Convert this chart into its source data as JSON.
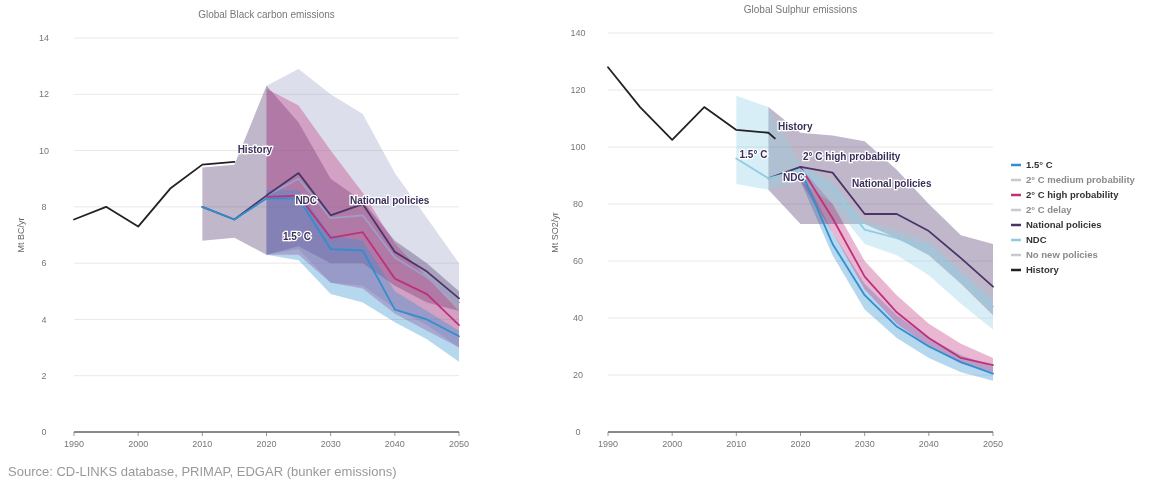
{
  "chart_data": [
    {
      "type": "line",
      "title": "Global Black carbon emissions",
      "ylabel": "Mt BC/yr",
      "xlim": [
        1990,
        2050
      ],
      "xticks": [
        1990,
        2000,
        2010,
        2020,
        2030,
        2040,
        2050
      ],
      "ylim": [
        0,
        14
      ],
      "yticks": [
        0,
        2,
        4,
        6,
        8,
        10,
        12,
        14
      ],
      "grid": "y",
      "legend": false,
      "series": [
        {
          "color": "#9aa0c8",
          "x": [
            2020,
            2025,
            2030,
            2035,
            2040,
            2045,
            2050
          ],
          "values": [
            8.4,
            9.0,
            7.6,
            7.7,
            6.2,
            5.5,
            4.6
          ],
          "lower": [
            6.3,
            6.5,
            5.3,
            5.2,
            4.4,
            3.8,
            3.0
          ],
          "upper": [
            12.3,
            12.9,
            12.0,
            11.3,
            9.2,
            7.6,
            6.0
          ]
        },
        {
          "color": "#4a3468",
          "x": [
            2010,
            2015,
            2020,
            2025,
            2030,
            2035,
            2040,
            2045,
            2050
          ],
          "values": [
            8.0,
            7.55,
            8.4,
            9.2,
            7.7,
            8.1,
            6.4,
            5.7,
            4.75
          ],
          "lower": [
            6.8,
            6.9,
            6.3,
            6.6,
            6.0,
            6.0,
            5.2,
            4.6,
            4.3
          ],
          "upper": [
            9.4,
            9.5,
            12.3,
            11.0,
            9.0,
            8.2,
            6.8,
            6.0,
            5.0
          ]
        },
        {
          "color": "#c0307a",
          "x": [
            2020,
            2025,
            2030,
            2035,
            2040,
            2045,
            2050
          ],
          "values": [
            8.35,
            8.4,
            6.9,
            7.1,
            5.45,
            4.9,
            3.8
          ],
          "lower": [
            6.3,
            6.3,
            5.3,
            5.1,
            4.2,
            3.6,
            3.0
          ],
          "upper": [
            12.2,
            11.6,
            10.0,
            8.5,
            6.7,
            5.5,
            4.3
          ]
        },
        {
          "color": "#2f8fd0",
          "x": [
            2010,
            2015,
            2020,
            2025,
            2030,
            2035,
            2040,
            2045,
            2050
          ],
          "values": [
            8.0,
            7.55,
            8.3,
            8.3,
            6.5,
            6.45,
            4.35,
            4.0,
            3.4
          ],
          "lower": [
            null,
            null,
            6.3,
            6.1,
            4.9,
            4.6,
            3.9,
            3.3,
            2.5
          ],
          "upper": [
            null,
            null,
            8.6,
            8.6,
            7.0,
            6.8,
            5.0,
            4.3,
            3.6
          ]
        },
        {
          "color": "#222222",
          "x": [
            1990,
            1995,
            2000,
            2005,
            2010,
            2015
          ],
          "values": [
            7.55,
            8.0,
            7.3,
            8.65,
            9.5,
            9.6
          ]
        }
      ],
      "annotations": [
        {
          "text": "History",
          "x": 2015.5,
          "y": 9.9
        },
        {
          "text": "NDC",
          "x": 2024.5,
          "y": 8.1
        },
        {
          "text": "National policies",
          "x": 2033,
          "y": 8.1
        },
        "1.5° C",
        "Source: CD-LINKS database, PRIMAP, EDGAR (bunker emissions)"
      ]
    },
    {
      "type": "line",
      "title": "Global Sulphur emissions",
      "ylabel": "Mt SO2/yr",
      "xlim": [
        1990,
        2050
      ],
      "xticks": [
        1990,
        2000,
        2010,
        2020,
        2030,
        2040,
        2050
      ],
      "ylim": [
        0,
        140
      ],
      "yticks": [
        0,
        20,
        40,
        60,
        80,
        100,
        120,
        140
      ],
      "grid": "y",
      "legend": "right",
      "series": [
        {
          "name": "1.5° C",
          "color": "#2f8fd0",
          "x": [
            2020,
            2025,
            2030,
            2035,
            2040,
            2045,
            2050
          ],
          "values": [
            92,
            66,
            48,
            37,
            30,
            24.5,
            20.5
          ],
          "lower": [
            88,
            62,
            43,
            33,
            26,
            21,
            18
          ],
          "upper": [
            92,
            70,
            52,
            41,
            33,
            27,
            23
          ]
        },
        {
          "name": "2° C medium probability",
          "color": "#c8c8d0"
        },
        {
          "name": "2° C high probability",
          "color": "#c0307a",
          "x": [
            2020,
            2025,
            2030,
            2035,
            2040,
            2045,
            2050
          ],
          "values": [
            93,
            75,
            54.5,
            42,
            33,
            26,
            23.5
          ],
          "lower": [
            88,
            70,
            50,
            38,
            30,
            24,
            21
          ],
          "upper": [
            93,
            80,
            60,
            48,
            38,
            31,
            26
          ]
        },
        {
          "name": "2° C delay",
          "color": "#c8c8d0"
        },
        {
          "name": "National policies",
          "color": "#4a3468",
          "x": [
            2015,
            2020,
            2025,
            2030,
            2035,
            2040,
            2045,
            2050
          ],
          "values": [
            89,
            93,
            91,
            76.5,
            76.5,
            70.5,
            61,
            51
          ],
          "lower": [
            85,
            73,
            73,
            73,
            68,
            62,
            52,
            41
          ],
          "upper": [
            114,
            105,
            104,
            102,
            92,
            80,
            69,
            66
          ]
        },
        {
          "name": "NDC",
          "color": "#8fcde6",
          "x": [
            2010,
            2015,
            2020,
            2025,
            2030,
            2035,
            2040,
            2045,
            2050
          ],
          "values": [
            96,
            89,
            92,
            85,
            71,
            68,
            64,
            54,
            44
          ],
          "lower": [
            87,
            85,
            88,
            80,
            66,
            62,
            55,
            45,
            36
          ],
          "upper": [
            118,
            114,
            94,
            88,
            74,
            71,
            67,
            57,
            47
          ]
        },
        {
          "name": "No new policies",
          "color": "#c8c8d0"
        },
        {
          "name": "History",
          "color": "#222222",
          "x": [
            1990,
            1995,
            2000,
            2005,
            2010,
            2015,
            2016
          ],
          "values": [
            128,
            114,
            102.5,
            114,
            106,
            105,
            103
          ]
        }
      ],
      "annotations": [
        {
          "text": "History",
          "x": 2016.5,
          "y": 106
        },
        {
          "text": "1.5° C",
          "x": 2010.5,
          "y": 96
        },
        "2° C high probability",
        "NDC",
        "National policies"
      ]
    }
  ]
}
